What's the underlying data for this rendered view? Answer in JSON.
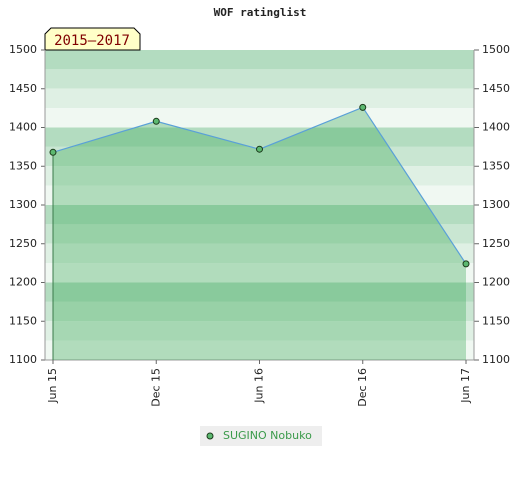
{
  "chart_data": {
    "type": "line",
    "title": "WOF ratinglist",
    "annotation": "2015–2017",
    "categories": [
      "Jun 15",
      "Dec 15",
      "Jun 16",
      "Dec 16",
      "Jun 17"
    ],
    "series": [
      {
        "name": "SUGINO Nobuko",
        "color": "#5aa0d8",
        "values": [
          1368,
          1408,
          1372,
          1426,
          1224
        ]
      }
    ],
    "ylim": [
      1100,
      1500
    ],
    "yticks": [
      1100,
      1150,
      1200,
      1250,
      1300,
      1350,
      1400,
      1450,
      1500
    ],
    "y2lim": [
      1100,
      1500
    ],
    "y2ticks": [
      1100,
      1150,
      1200,
      1250,
      1300,
      1350,
      1400,
      1450,
      1500
    ]
  }
}
